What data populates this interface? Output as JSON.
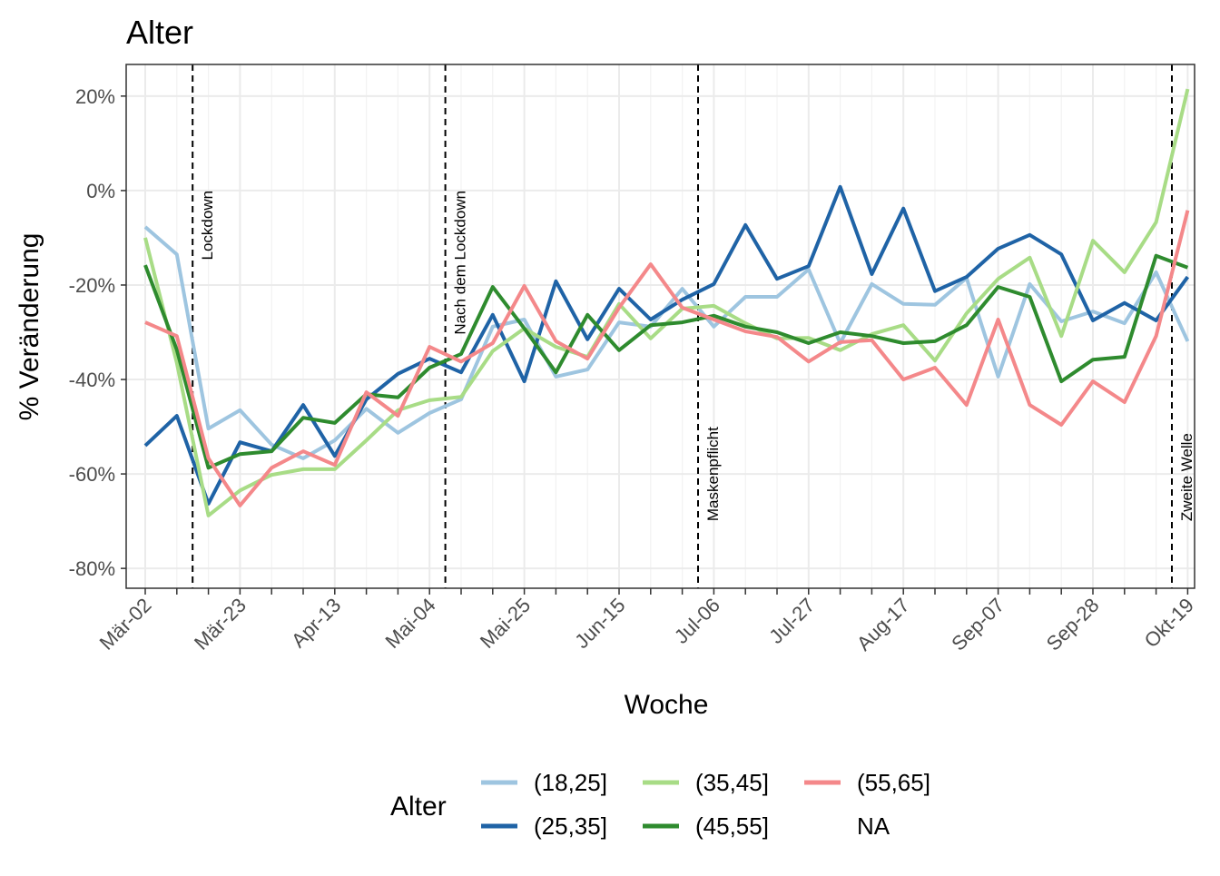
{
  "chart_data": {
    "type": "line",
    "title": "Alter",
    "x_label": "Woche",
    "y_label": "% Veränderung",
    "legend_title": "Alter",
    "legend_position": "bottom",
    "grid": true,
    "categories": [
      "Mär-02",
      null,
      null,
      "Mär-23",
      null,
      null,
      "Apr-13",
      null,
      null,
      "Mai-04",
      null,
      null,
      "Mai-25",
      null,
      null,
      "Jun-15",
      null,
      null,
      "Jul-06",
      null,
      null,
      "Jul-27",
      null,
      null,
      "Aug-17",
      null,
      null,
      "Sep-07",
      null,
      null,
      "Sep-28",
      null,
      null,
      "Okt-19"
    ],
    "ylim": [
      -84.2,
      26.7
    ],
    "yticks": [
      {
        "value": -80,
        "label": "-80%"
      },
      {
        "value": -60,
        "label": "-60%"
      },
      {
        "value": -40,
        "label": "-40%"
      },
      {
        "value": -20,
        "label": "-20%"
      },
      {
        "value": 0,
        "label": "0%"
      },
      {
        "value": 20,
        "label": "20%"
      }
    ],
    "annotations": [
      {
        "x": 1.5,
        "y": 0,
        "align": "top",
        "label": "Lockdown"
      },
      {
        "x": 9.5,
        "y": 0,
        "align": "top",
        "label": "Nach dem Lockdown"
      },
      {
        "x": 17.5,
        "y": -70,
        "align": "bottom",
        "label": "Maskenpflicht"
      },
      {
        "x": 32.5,
        "y": -70,
        "align": "bottom",
        "label": "Zweite Welle"
      }
    ],
    "series": [
      {
        "name": "(18,25]",
        "color": "#9ec5e0",
        "values": [
          -7.7,
          -13.5,
          -50.4,
          -46.5,
          -53.8,
          -56.7,
          -52.9,
          -46.2,
          -51.3,
          -47.1,
          -44.2,
          -28.8,
          -27.3,
          -39.4,
          -37.9,
          -27.9,
          -28.8,
          -20.8,
          -28.8,
          -22.5,
          -22.5,
          -16.7,
          -32.3,
          -19.8,
          -24,
          -24.2,
          -18.5,
          -39.4,
          -19.8,
          -27.7,
          -25.6,
          -28.1,
          -17.3,
          -31.9
        ]
      },
      {
        "name": "(25,35]",
        "color": "#1f63a6",
        "values": [
          -54,
          -47.7,
          -66.3,
          -53.3,
          -55.2,
          -45.4,
          -56.2,
          -44.2,
          -38.8,
          -35.6,
          -38.5,
          -26.3,
          -40.4,
          -19.2,
          -31.5,
          -20.8,
          -27.3,
          -23.1,
          -19.8,
          -7.3,
          -18.7,
          -16,
          0.8,
          -17.7,
          -3.8,
          -21.3,
          -18.3,
          -12.3,
          -9.4,
          -13.5,
          -27.5,
          -23.8,
          -27.5,
          -18.3
        ]
      },
      {
        "name": "(35,45]",
        "color": "#a8dc86",
        "values": [
          -10,
          -36.5,
          -68.8,
          -63.5,
          -60.2,
          -59,
          -59,
          -52.9,
          -46.5,
          -44.4,
          -43.7,
          -34,
          -29.2,
          -33.1,
          -35.2,
          -24,
          -31.3,
          -25,
          -24.4,
          -28.1,
          -31.3,
          -31.2,
          -33.8,
          -30.4,
          -28.5,
          -36,
          -26,
          -18.7,
          -14.2,
          -30.8,
          -10.6,
          -17.3,
          -6.7,
          21.5
        ]
      },
      {
        "name": "(45,55]",
        "color": "#2e8b2e",
        "values": [
          -15.8,
          -33.7,
          -58.7,
          -55.8,
          -55.2,
          -48.1,
          -49.2,
          -43.1,
          -43.8,
          -37.5,
          -34.6,
          -20.4,
          -29.2,
          -38.5,
          -26.3,
          -33.8,
          -28.5,
          -27.9,
          -26.5,
          -28.8,
          -30,
          -32.3,
          -30,
          -30.8,
          -32.3,
          -31.9,
          -28.5,
          -20.4,
          -22.5,
          -40.4,
          -35.8,
          -35.2,
          -13.8,
          -16.3
        ]
      },
      {
        "name": "(55,65]",
        "color": "#f4888a",
        "values": [
          -27.9,
          -30.8,
          -56.7,
          -66.7,
          -58.7,
          -55.2,
          -58.1,
          -42.7,
          -47.7,
          -33.1,
          -36.2,
          -32.3,
          -20.2,
          -31.9,
          -35.6,
          -24.8,
          -15.6,
          -24.8,
          -27.3,
          -29.8,
          -31,
          -36.2,
          -32.1,
          -31.7,
          -40,
          -37.5,
          -45.4,
          -27.3,
          -45.4,
          -49.6,
          -40.4,
          -44.8,
          -30.8,
          -4.2
        ]
      },
      {
        "name": "NA",
        "color": null,
        "values": [
          null,
          null,
          null,
          null,
          null,
          null,
          null,
          null,
          null,
          null,
          null,
          null,
          null,
          null,
          null,
          null,
          null,
          null,
          null,
          null,
          null,
          null,
          null,
          null,
          null,
          null,
          null,
          null,
          null,
          null,
          null,
          null,
          null,
          null
        ]
      }
    ]
  }
}
